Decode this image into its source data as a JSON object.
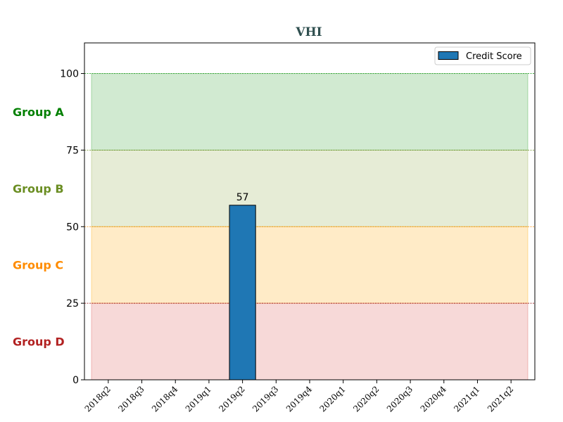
{
  "chart_data": {
    "type": "bar",
    "title": "VHI",
    "categories": [
      "2018q2",
      "2018q3",
      "2018q4",
      "2019q1",
      "2019q2",
      "2019q3",
      "2019q4",
      "2020q1",
      "2020q2",
      "2020q3",
      "2020q4",
      "2021q1",
      "2021q2"
    ],
    "series": [
      {
        "name": "Credit Score",
        "values": [
          null,
          null,
          null,
          null,
          57,
          null,
          null,
          null,
          null,
          null,
          null,
          null,
          null
        ],
        "color": "#1f77b4"
      }
    ],
    "data_labels": [
      "",
      "",
      "",
      "",
      "57",
      "",
      "",
      "",
      "",
      "",
      "",
      "",
      ""
    ],
    "ylim": [
      0,
      110
    ],
    "yticks": [
      0,
      25,
      50,
      75,
      100
    ],
    "ytick_labels": [
      "0",
      "25",
      "50",
      "75",
      "100"
    ],
    "legend_position": "top-right",
    "bands": [
      {
        "label": "Group A",
        "from": 75,
        "to": 100,
        "fill": "#2ca02c",
        "label_color": "#008000",
        "line_color": "#2ca02c"
      },
      {
        "label": "Group B",
        "from": 50,
        "to": 75,
        "fill": "#8fa845",
        "label_color": "#6b8e23",
        "line_color": "#6b8e23"
      },
      {
        "label": "Group C",
        "from": 25,
        "to": 50,
        "fill": "#ffa500",
        "label_color": "#ff8c00",
        "line_color": "#ff8c00"
      },
      {
        "label": "Group D",
        "from": 0,
        "to": 25,
        "fill": "#d9534f",
        "label_color": "#b22222",
        "line_color": "#8b0000"
      }
    ]
  }
}
